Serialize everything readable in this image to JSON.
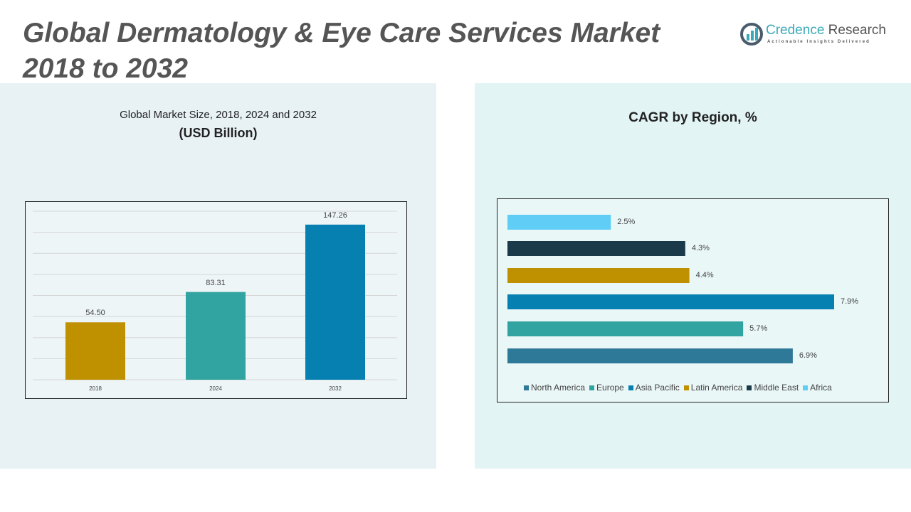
{
  "title": "Global Dermatology & Eye Care Services Market 2018 to 2032",
  "logo": {
    "name1": "Credence",
    "name2": "Research",
    "tagline": "Actionable Insights Delivered"
  },
  "chart_data": [
    {
      "type": "bar",
      "title": "Global Market Size, 2018, 2024 and 2032",
      "subtitle": "(USD Billion)",
      "categories": [
        "2018",
        "2024",
        "2032"
      ],
      "values": [
        54.5,
        83.31,
        147.26
      ],
      "labels": [
        "54.50",
        "83.31",
        "147.26"
      ],
      "colors": [
        "#bf9000",
        "#31a3a0",
        "#0580b0"
      ],
      "ylim": [
        0,
        160
      ],
      "grid": true
    },
    {
      "type": "bar",
      "orientation": "horizontal",
      "title": "CAGR by Region, %",
      "categories": [
        "Africa",
        "Middle East",
        "Latin America",
        "Asia Pacific",
        "Europe",
        "North America"
      ],
      "values": [
        2.5,
        4.3,
        4.4,
        7.9,
        5.7,
        6.9
      ],
      "labels": [
        "2.5%",
        "4.3%",
        "4.4%",
        "7.9%",
        "5.7%",
        "6.9%"
      ],
      "colors": [
        "#5fcdf5",
        "#1a3a4a",
        "#bf9000",
        "#0580b0",
        "#31a3a0",
        "#2e7898"
      ],
      "legend": [
        "North America",
        "Europe",
        "Asia Pacific",
        "Latin America",
        "Middle East",
        "Africa"
      ],
      "legend_colors": [
        "#2e7898",
        "#31a3a0",
        "#0580b0",
        "#bf9000",
        "#1a3a4a",
        "#5fcdf5"
      ],
      "legend_position": "bottom"
    }
  ]
}
